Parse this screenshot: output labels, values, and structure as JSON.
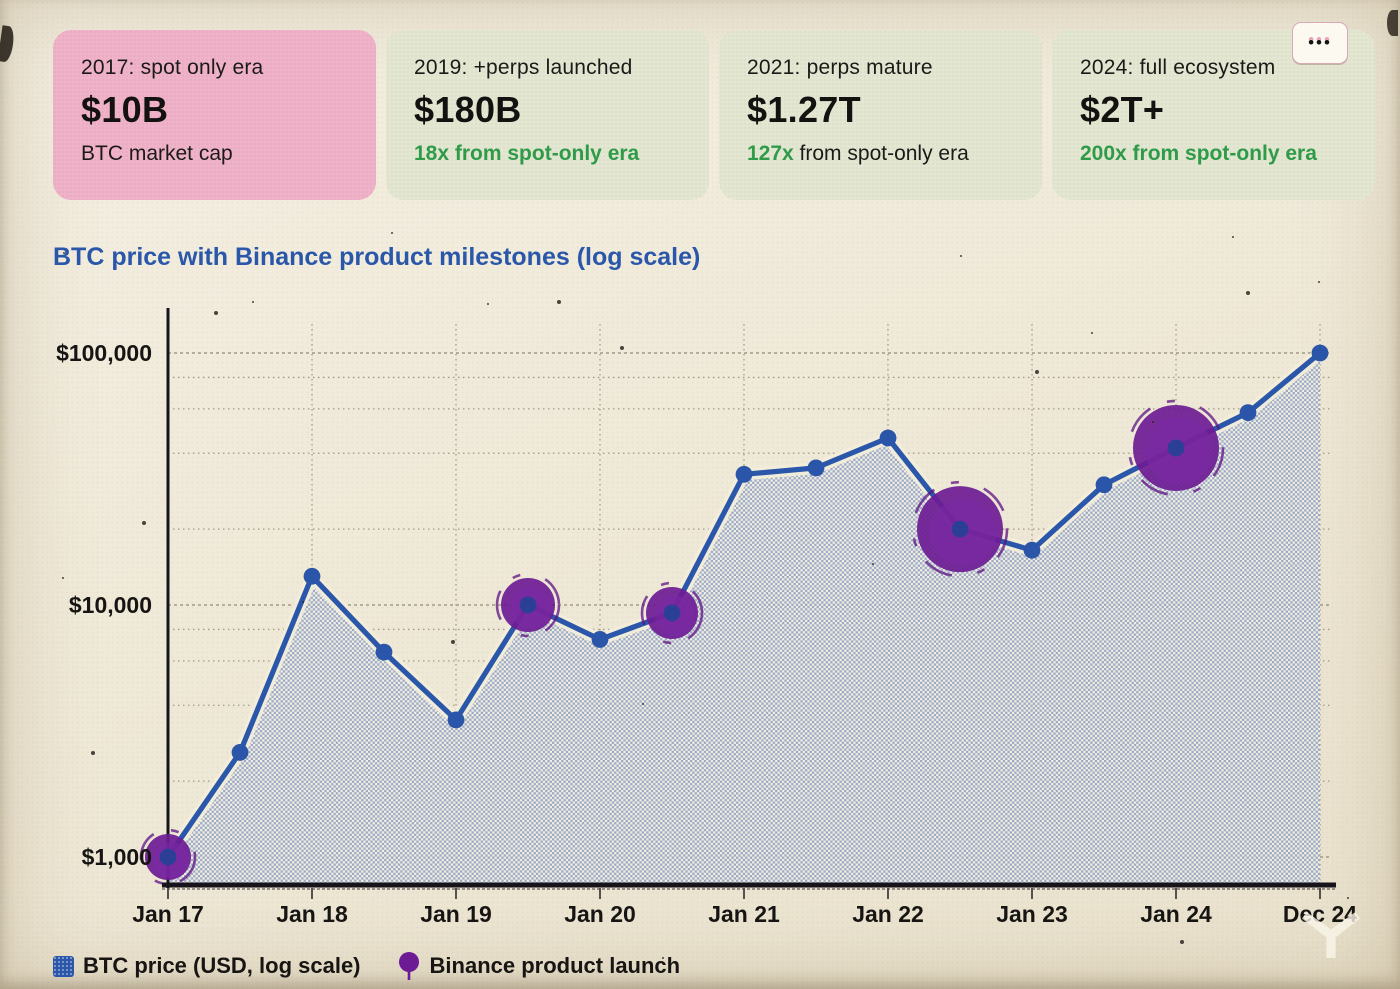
{
  "header": {
    "menu_glyph": "•••"
  },
  "cards": [
    {
      "era": "2017: spot only era",
      "value": "$10B",
      "note_green": "",
      "note_rest": "BTC market cap"
    },
    {
      "era": "2019: +perps launched",
      "value": "$180B",
      "note_green": "18x from spot-only era",
      "note_rest": ""
    },
    {
      "era": "2021: perps mature",
      "value": "$1.27T",
      "note_green": "127x",
      "note_rest": " from spot-only era"
    },
    {
      "era": "2024: full ecosystem",
      "value": "$2T+",
      "note_green": "200x from spot-only era",
      "note_rest": ""
    }
  ],
  "chart_data": {
    "type": "area",
    "title": "BTC price with Binance product milestones (log scale)",
    "y_scale": "log",
    "ylim": [
      1000,
      100000
    ],
    "grid": true,
    "y_ticks": [
      {
        "label": "$1,000",
        "value": 1000
      },
      {
        "label": "$10,000",
        "value": 10000
      },
      {
        "label": "$100,000",
        "value": 100000
      }
    ],
    "x_ticks": [
      {
        "label": "Jan 17",
        "t": 2017
      },
      {
        "label": "Jan 18",
        "t": 2018
      },
      {
        "label": "Jan 19",
        "t": 2019
      },
      {
        "label": "Jan 20",
        "t": 2020
      },
      {
        "label": "Jan 21",
        "t": 2021
      },
      {
        "label": "Jan 22",
        "t": 2022
      },
      {
        "label": "Jan 23",
        "t": 2023
      },
      {
        "label": "Jan 24",
        "t": 2024
      },
      {
        "label": "Dec 24",
        "t": 2025
      }
    ],
    "series": [
      {
        "name": "BTC price (USD, log scale)",
        "points": [
          {
            "t": 2017.0,
            "price": 1000,
            "milestone": true,
            "blob_r": 23
          },
          {
            "t": 2017.5,
            "price": 2600,
            "milestone": false
          },
          {
            "t": 2018.0,
            "price": 13000,
            "milestone": false
          },
          {
            "t": 2018.5,
            "price": 6500,
            "milestone": false
          },
          {
            "t": 2019.0,
            "price": 3500,
            "milestone": false
          },
          {
            "t": 2019.5,
            "price": 10000,
            "milestone": true,
            "blob_r": 27
          },
          {
            "t": 2020.0,
            "price": 7300,
            "milestone": false
          },
          {
            "t": 2020.5,
            "price": 9300,
            "milestone": true,
            "blob_r": 26
          },
          {
            "t": 2021.0,
            "price": 33000,
            "milestone": false
          },
          {
            "t": 2021.5,
            "price": 35000,
            "milestone": false
          },
          {
            "t": 2022.0,
            "price": 46000,
            "milestone": false
          },
          {
            "t": 2022.5,
            "price": 20000,
            "milestone": true,
            "blob_r": 43
          },
          {
            "t": 2023.0,
            "price": 16500,
            "milestone": false
          },
          {
            "t": 2023.5,
            "price": 30000,
            "milestone": false
          },
          {
            "t": 2024.0,
            "price": 42000,
            "milestone": true,
            "blob_r": 43
          },
          {
            "t": 2024.5,
            "price": 58000,
            "milestone": false
          },
          {
            "t": 2025.0,
            "price": 100000,
            "milestone": false
          }
        ]
      }
    ],
    "milestone_series_name": "Binance product launch",
    "colors": {
      "line": "#2a57aa",
      "area_dot": "#93a4c7",
      "milestone": "#6d1b94",
      "grid": "#a29a87",
      "axis": "#16141a"
    }
  },
  "legend": {
    "items": [
      {
        "label": "BTC price (USD, log scale)",
        "swatch": "square",
        "color": "#2a57aa"
      },
      {
        "label": "Binance product launch",
        "swatch": "pin",
        "color": "#6d1b94"
      }
    ]
  }
}
